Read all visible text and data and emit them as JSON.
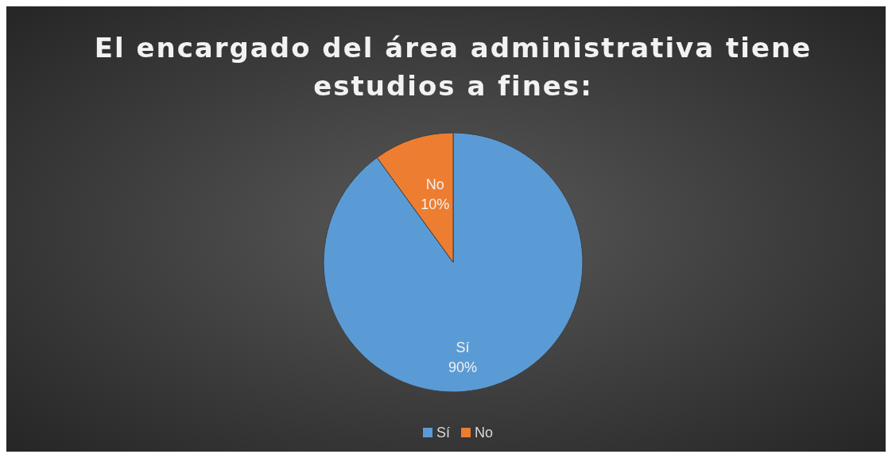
{
  "chart_data": {
    "type": "pie",
    "title": "El encargado del área administrativa tiene estudios a fines:",
    "categories": [
      "Sí",
      "No"
    ],
    "values": [
      90,
      10
    ],
    "colors": [
      "#5b9bd5",
      "#ed7d31"
    ],
    "value_labels": [
      "90%",
      "10%"
    ],
    "legend": "bottom"
  }
}
